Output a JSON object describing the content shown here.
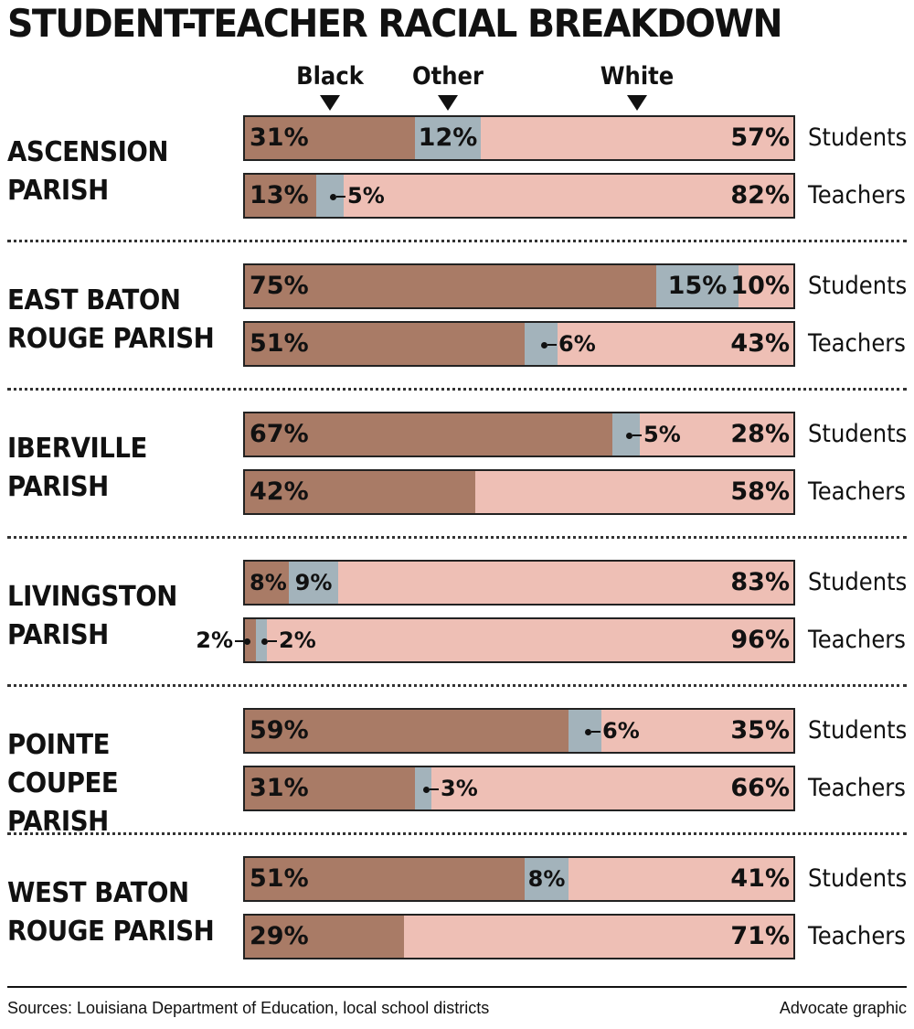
{
  "title": "STUDENT-TEACHER RACIAL BREAKDOWN",
  "source": "Sources: Louisiana Department of Education, local school districts",
  "credit": "Advocate graphic",
  "colors": {
    "Black": "#a97b66",
    "Other": "#a3b3bb",
    "White": "#eebfb5"
  },
  "chart_data": {
    "type": "bar",
    "stacked": true,
    "orientation": "horizontal",
    "title": "STUDENT-TEACHER RACIAL BREAKDOWN",
    "legend": [
      "Black",
      "Other",
      "White"
    ],
    "legend_placement": "top",
    "units": "%",
    "xlim": [
      0,
      100
    ],
    "groups": [
      {
        "name": "ASCENSION PARISH",
        "rows": [
          {
            "label": "Students",
            "Black": 31,
            "Other": 12,
            "White": 57
          },
          {
            "label": "Teachers",
            "Black": 13,
            "Other": 5,
            "White": 82
          }
        ]
      },
      {
        "name": "EAST BATON ROUGE PARISH",
        "rows": [
          {
            "label": "Students",
            "Black": 75,
            "Other": 15,
            "White": 10
          },
          {
            "label": "Teachers",
            "Black": 51,
            "Other": 6,
            "White": 43
          }
        ]
      },
      {
        "name": "IBERVILLE PARISH",
        "rows": [
          {
            "label": "Students",
            "Black": 67,
            "Other": 5,
            "White": 28
          },
          {
            "label": "Teachers",
            "Black": 42,
            "Other": 0,
            "White": 58
          }
        ]
      },
      {
        "name": "LIVINGSTON PARISH",
        "rows": [
          {
            "label": "Students",
            "Black": 8,
            "Other": 9,
            "White": 83
          },
          {
            "label": "Teachers",
            "Black": 2,
            "Other": 2,
            "White": 96
          }
        ]
      },
      {
        "name": "POINTE COUPEE PARISH",
        "rows": [
          {
            "label": "Students",
            "Black": 59,
            "Other": 6,
            "White": 35
          },
          {
            "label": "Teachers",
            "Black": 31,
            "Other": 3,
            "White": 66
          }
        ]
      },
      {
        "name": "WEST BATON ROUGE PARISH",
        "rows": [
          {
            "label": "Students",
            "Black": 51,
            "Other": 8,
            "White": 41
          },
          {
            "label": "Teachers",
            "Black": 29,
            "Other": 0,
            "White": 71
          }
        ]
      }
    ]
  }
}
